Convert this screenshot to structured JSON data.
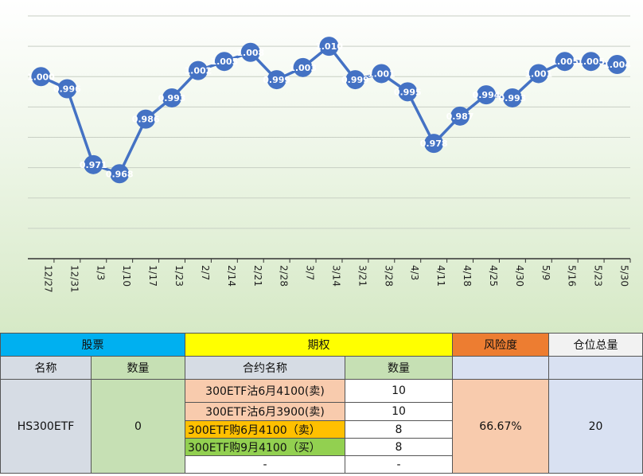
{
  "chart_data": {
    "type": "line",
    "categories": [
      "12/27",
      "12/31",
      "1/3",
      "1/10",
      "1/17",
      "1/23",
      "2/7",
      "2/14",
      "2/21",
      "2/28",
      "3/7",
      "3/14",
      "3/21",
      "3/28",
      "4/3",
      "4/11",
      "4/18",
      "4/25",
      "4/30",
      "5/9",
      "5/16",
      "5/23",
      "5/30"
    ],
    "values": [
      1.0,
      0.996,
      0.971,
      0.968,
      0.986,
      0.993,
      1.002,
      1.005,
      1.008,
      0.999,
      1.003,
      1.01,
      0.999,
      1.001,
      0.995,
      0.978,
      0.987,
      0.994,
      0.993,
      1.001,
      1.005,
      1.005,
      1.004
    ],
    "value_labels": [
      "1.000",
      "0.996",
      "0.971",
      "0.968",
      "0.986",
      "0.993",
      "1.002",
      "1.005",
      "1.008",
      "0.999",
      "1.003",
      "1.010",
      "0.999",
      "1.001",
      "0.995",
      "0.978",
      "0.987",
      "0.994",
      "0.993",
      "1.001",
      "1.005",
      "1.005",
      "1.004"
    ],
    "ylim": [
      0.94,
      1.02
    ],
    "grid": true,
    "line_color": "#4472c4",
    "label_color": "#ffffff"
  },
  "table": {
    "headers": {
      "stock": "股票",
      "options": "期权",
      "risk": "风险度",
      "position": "仓位总量"
    },
    "subheaders": {
      "name": "名称",
      "qty": "数量",
      "contract": "合约名称",
      "contract_qty": "数量"
    },
    "stock": {
      "name": "HS300ETF",
      "qty": "0"
    },
    "contracts": [
      {
        "name": "300ETF沽6月4100(卖)",
        "qty": "10"
      },
      {
        "name": "300ETF沽6月3900(卖)",
        "qty": "10"
      },
      {
        "name": "300ETF购6月4100（卖）",
        "qty": "8"
      },
      {
        "name": "300ETF购9月4100（买）",
        "qty": "8"
      },
      {
        "name": "-",
        "qty": "-"
      }
    ],
    "risk": "66.67%",
    "position": "20"
  }
}
